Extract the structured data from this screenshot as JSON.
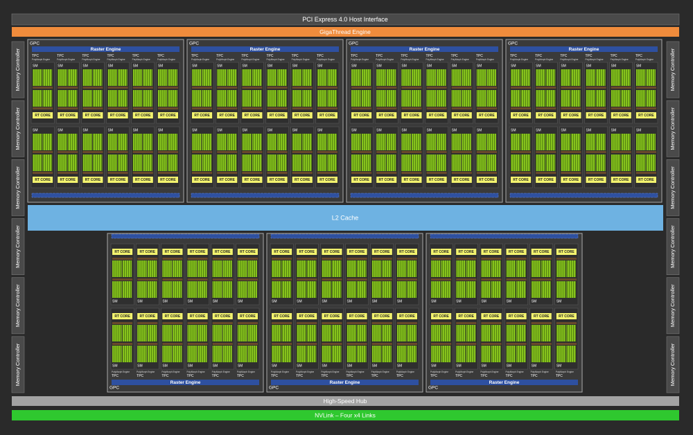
{
  "header": {
    "host_interface": "PCI Express 4.0 Host Interface",
    "gigathread": "GigaThread Engine"
  },
  "memory_controllers": {
    "left": [
      "Memory Controller",
      "Memory Controller",
      "Memory Controller",
      "Memory Controller",
      "Memory Controller",
      "Memory Controller"
    ],
    "right": [
      "Memory Controller",
      "Memory Controller",
      "Memory Controller",
      "Memory Controller",
      "Memory Controller",
      "Memory Controller"
    ]
  },
  "l2_cache": "L2 Cache",
  "gpcs": [
    {
      "label": "GPC",
      "raster_engine": "Raster Engine",
      "tpcs": [
        {
          "label": "TPC",
          "polymorph": "PolyMorph Engine",
          "sms": [
            {
              "label": "SM",
              "rt_core": "RT CORE"
            },
            {
              "label": "SM",
              "rt_core": "RT CORE"
            }
          ]
        },
        {
          "label": "TPC",
          "polymorph": "PolyMorph Engine",
          "sms": [
            {
              "label": "SM",
              "rt_core": "RT CORE"
            },
            {
              "label": "SM",
              "rt_core": "RT CORE"
            }
          ]
        },
        {
          "label": "TPC",
          "polymorph": "PolyMorph Engine",
          "sms": [
            {
              "label": "SM",
              "rt_core": "RT CORE"
            },
            {
              "label": "SM",
              "rt_core": "RT CORE"
            }
          ]
        },
        {
          "label": "TPC",
          "polymorph": "PolyMorph Engine",
          "sms": [
            {
              "label": "SM",
              "rt_core": "RT CORE"
            },
            {
              "label": "SM",
              "rt_core": "RT CORE"
            }
          ]
        },
        {
          "label": "TPC",
          "polymorph": "PolyMorph Engine",
          "sms": [
            {
              "label": "SM",
              "rt_core": "RT CORE"
            },
            {
              "label": "SM",
              "rt_core": "RT CORE"
            }
          ]
        },
        {
          "label": "TPC",
          "polymorph": "PolyMorph Engine",
          "sms": [
            {
              "label": "SM",
              "rt_core": "RT CORE"
            },
            {
              "label": "SM",
              "rt_core": "RT CORE"
            }
          ]
        }
      ]
    },
    {
      "label": "GPC",
      "raster_engine": "Raster Engine",
      "tpcs": [
        {
          "label": "TPC",
          "polymorph": "PolyMorph Engine",
          "sms": [
            {
              "label": "SM",
              "rt_core": "RT CORE"
            },
            {
              "label": "SM",
              "rt_core": "RT CORE"
            }
          ]
        },
        {
          "label": "TPC",
          "polymorph": "PolyMorph Engine",
          "sms": [
            {
              "label": "SM",
              "rt_core": "RT CORE"
            },
            {
              "label": "SM",
              "rt_core": "RT CORE"
            }
          ]
        },
        {
          "label": "TPC",
          "polymorph": "PolyMorph Engine",
          "sms": [
            {
              "label": "SM",
              "rt_core": "RT CORE"
            },
            {
              "label": "SM",
              "rt_core": "RT CORE"
            }
          ]
        },
        {
          "label": "TPC",
          "polymorph": "PolyMorph Engine",
          "sms": [
            {
              "label": "SM",
              "rt_core": "RT CORE"
            },
            {
              "label": "SM",
              "rt_core": "RT CORE"
            }
          ]
        },
        {
          "label": "TPC",
          "polymorph": "PolyMorph Engine",
          "sms": [
            {
              "label": "SM",
              "rt_core": "RT CORE"
            },
            {
              "label": "SM",
              "rt_core": "RT CORE"
            }
          ]
        },
        {
          "label": "TPC",
          "polymorph": "PolyMorph Engine",
          "sms": [
            {
              "label": "SM",
              "rt_core": "RT CORE"
            },
            {
              "label": "SM",
              "rt_core": "RT CORE"
            }
          ]
        }
      ]
    },
    {
      "label": "GPC",
      "raster_engine": "Raster Engine",
      "tpcs": [
        {
          "label": "TPC",
          "polymorph": "PolyMorph Engine",
          "sms": [
            {
              "label": "SM",
              "rt_core": "RT CORE"
            },
            {
              "label": "SM",
              "rt_core": "RT CORE"
            }
          ]
        },
        {
          "label": "TPC",
          "polymorph": "PolyMorph Engine",
          "sms": [
            {
              "label": "SM",
              "rt_core": "RT CORE"
            },
            {
              "label": "SM",
              "rt_core": "RT CORE"
            }
          ]
        },
        {
          "label": "TPC",
          "polymorph": "PolyMorph Engine",
          "sms": [
            {
              "label": "SM",
              "rt_core": "RT CORE"
            },
            {
              "label": "SM",
              "rt_core": "RT CORE"
            }
          ]
        },
        {
          "label": "TPC",
          "polymorph": "PolyMorph Engine",
          "sms": [
            {
              "label": "SM",
              "rt_core": "RT CORE"
            },
            {
              "label": "SM",
              "rt_core": "RT CORE"
            }
          ]
        },
        {
          "label": "TPC",
          "polymorph": "PolyMorph Engine",
          "sms": [
            {
              "label": "SM",
              "rt_core": "RT CORE"
            },
            {
              "label": "SM",
              "rt_core": "RT CORE"
            }
          ]
        },
        {
          "label": "TPC",
          "polymorph": "PolyMorph Engine",
          "sms": [
            {
              "label": "SM",
              "rt_core": "RT CORE"
            },
            {
              "label": "SM",
              "rt_core": "RT CORE"
            }
          ]
        }
      ]
    },
    {
      "label": "GPC",
      "raster_engine": "Raster Engine",
      "tpcs": [
        {
          "label": "TPC",
          "polymorph": "PolyMorph Engine",
          "sms": [
            {
              "label": "SM",
              "rt_core": "RT CORE"
            },
            {
              "label": "SM",
              "rt_core": "RT CORE"
            }
          ]
        },
        {
          "label": "TPC",
          "polymorph": "PolyMorph Engine",
          "sms": [
            {
              "label": "SM",
              "rt_core": "RT CORE"
            },
            {
              "label": "SM",
              "rt_core": "RT CORE"
            }
          ]
        },
        {
          "label": "TPC",
          "polymorph": "PolyMorph Engine",
          "sms": [
            {
              "label": "SM",
              "rt_core": "RT CORE"
            },
            {
              "label": "SM",
              "rt_core": "RT CORE"
            }
          ]
        },
        {
          "label": "TPC",
          "polymorph": "PolyMorph Engine",
          "sms": [
            {
              "label": "SM",
              "rt_core": "RT CORE"
            },
            {
              "label": "SM",
              "rt_core": "RT CORE"
            }
          ]
        },
        {
          "label": "TPC",
          "polymorph": "PolyMorph Engine",
          "sms": [
            {
              "label": "SM",
              "rt_core": "RT CORE"
            },
            {
              "label": "SM",
              "rt_core": "RT CORE"
            }
          ]
        },
        {
          "label": "TPC",
          "polymorph": "PolyMorph Engine",
          "sms": [
            {
              "label": "SM",
              "rt_core": "RT CORE"
            },
            {
              "label": "SM",
              "rt_core": "RT CORE"
            }
          ]
        }
      ]
    },
    {
      "label": "GPC",
      "raster_engine": "Raster Engine",
      "tpcs": [
        {
          "label": "TPC",
          "polymorph": "PolyMorph Engine",
          "sms": [
            {
              "label": "SM",
              "rt_core": "RT CORE"
            },
            {
              "label": "SM",
              "rt_core": "RT CORE"
            }
          ]
        },
        {
          "label": "TPC",
          "polymorph": "PolyMorph Engine",
          "sms": [
            {
              "label": "SM",
              "rt_core": "RT CORE"
            },
            {
              "label": "SM",
              "rt_core": "RT CORE"
            }
          ]
        },
        {
          "label": "TPC",
          "polymorph": "PolyMorph Engine",
          "sms": [
            {
              "label": "SM",
              "rt_core": "RT CORE"
            },
            {
              "label": "SM",
              "rt_core": "RT CORE"
            }
          ]
        },
        {
          "label": "TPC",
          "polymorph": "PolyMorph Engine",
          "sms": [
            {
              "label": "SM",
              "rt_core": "RT CORE"
            },
            {
              "label": "SM",
              "rt_core": "RT CORE"
            }
          ]
        },
        {
          "label": "TPC",
          "polymorph": "PolyMorph Engine",
          "sms": [
            {
              "label": "SM",
              "rt_core": "RT CORE"
            },
            {
              "label": "SM",
              "rt_core": "RT CORE"
            }
          ]
        },
        {
          "label": "TPC",
          "polymorph": "PolyMorph Engine",
          "sms": [
            {
              "label": "SM",
              "rt_core": "RT CORE"
            },
            {
              "label": "SM",
              "rt_core": "RT CORE"
            }
          ]
        }
      ]
    },
    {
      "label": "GPC",
      "raster_engine": "Raster Engine",
      "tpcs": [
        {
          "label": "TPC",
          "polymorph": "PolyMorph Engine",
          "sms": [
            {
              "label": "SM",
              "rt_core": "RT CORE"
            },
            {
              "label": "SM",
              "rt_core": "RT CORE"
            }
          ]
        },
        {
          "label": "TPC",
          "polymorph": "PolyMorph Engine",
          "sms": [
            {
              "label": "SM",
              "rt_core": "RT CORE"
            },
            {
              "label": "SM",
              "rt_core": "RT CORE"
            }
          ]
        },
        {
          "label": "TPC",
          "polymorph": "PolyMorph Engine",
          "sms": [
            {
              "label": "SM",
              "rt_core": "RT CORE"
            },
            {
              "label": "SM",
              "rt_core": "RT CORE"
            }
          ]
        },
        {
          "label": "TPC",
          "polymorph": "PolyMorph Engine",
          "sms": [
            {
              "label": "SM",
              "rt_core": "RT CORE"
            },
            {
              "label": "SM",
              "rt_core": "RT CORE"
            }
          ]
        },
        {
          "label": "TPC",
          "polymorph": "PolyMorph Engine",
          "sms": [
            {
              "label": "SM",
              "rt_core": "RT CORE"
            },
            {
              "label": "SM",
              "rt_core": "RT CORE"
            }
          ]
        },
        {
          "label": "TPC",
          "polymorph": "PolyMorph Engine",
          "sms": [
            {
              "label": "SM",
              "rt_core": "RT CORE"
            },
            {
              "label": "SM",
              "rt_core": "RT CORE"
            }
          ]
        }
      ]
    },
    {
      "label": "GPC",
      "raster_engine": "Raster Engine",
      "tpcs": [
        {
          "label": "TPC",
          "polymorph": "PolyMorph Engine",
          "sms": [
            {
              "label": "SM",
              "rt_core": "RT CORE"
            },
            {
              "label": "SM",
              "rt_core": "RT CORE"
            }
          ]
        },
        {
          "label": "TPC",
          "polymorph": "PolyMorph Engine",
          "sms": [
            {
              "label": "SM",
              "rt_core": "RT CORE"
            },
            {
              "label": "SM",
              "rt_core": "RT CORE"
            }
          ]
        },
        {
          "label": "TPC",
          "polymorph": "PolyMorph Engine",
          "sms": [
            {
              "label": "SM",
              "rt_core": "RT CORE"
            },
            {
              "label": "SM",
              "rt_core": "RT CORE"
            }
          ]
        },
        {
          "label": "TPC",
          "polymorph": "PolyMorph Engine",
          "sms": [
            {
              "label": "SM",
              "rt_core": "RT CORE"
            },
            {
              "label": "SM",
              "rt_core": "RT CORE"
            }
          ]
        },
        {
          "label": "TPC",
          "polymorph": "PolyMorph Engine",
          "sms": [
            {
              "label": "SM",
              "rt_core": "RT CORE"
            },
            {
              "label": "SM",
              "rt_core": "RT CORE"
            }
          ]
        },
        {
          "label": "TPC",
          "polymorph": "PolyMorph Engine",
          "sms": [
            {
              "label": "SM",
              "rt_core": "RT CORE"
            },
            {
              "label": "SM",
              "rt_core": "RT CORE"
            }
          ]
        }
      ]
    }
  ],
  "footer": {
    "hub": "High-Speed Hub",
    "nvlink": "NVLink – Four x4 Links"
  }
}
